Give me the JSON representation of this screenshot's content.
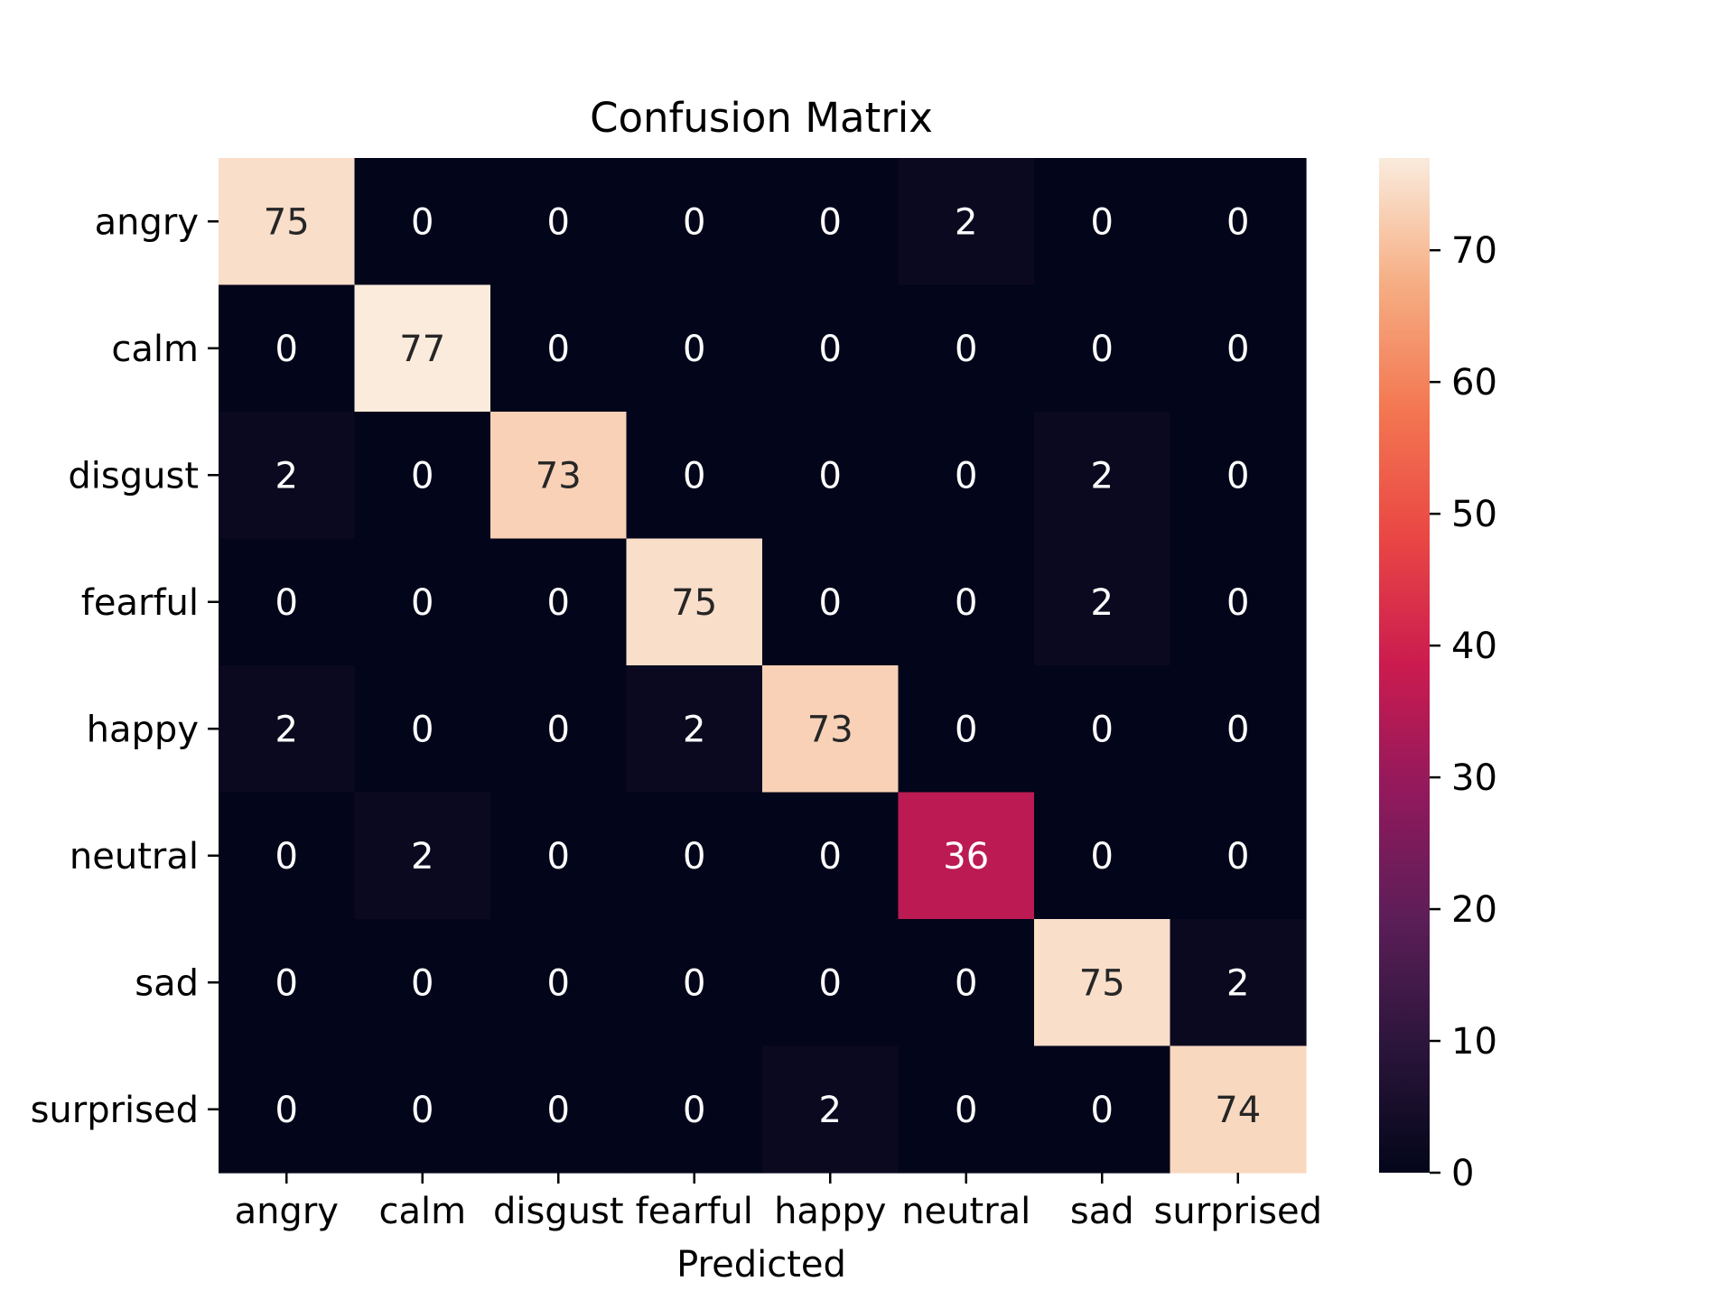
{
  "chart_data": {
    "type": "heatmap",
    "title": "Confusion Matrix",
    "xlabel": "Predicted",
    "ylabel": "",
    "x_categories": [
      "angry",
      "calm",
      "disgust",
      "fearful",
      "happy",
      "neutral",
      "sad",
      "surprised"
    ],
    "y_categories": [
      "angry",
      "calm",
      "disgust",
      "fearful",
      "happy",
      "neutral",
      "sad",
      "surprised"
    ],
    "values": [
      [
        75,
        0,
        0,
        0,
        0,
        2,
        0,
        0
      ],
      [
        0,
        77,
        0,
        0,
        0,
        0,
        0,
        0
      ],
      [
        2,
        0,
        73,
        0,
        0,
        0,
        2,
        0
      ],
      [
        0,
        0,
        0,
        75,
        0,
        0,
        2,
        0
      ],
      [
        2,
        0,
        0,
        2,
        73,
        0,
        0,
        0
      ],
      [
        0,
        2,
        0,
        0,
        0,
        36,
        0,
        0
      ],
      [
        0,
        0,
        0,
        0,
        0,
        0,
        75,
        2
      ],
      [
        0,
        0,
        0,
        0,
        2,
        0,
        0,
        74
      ]
    ],
    "colorbar": {
      "min": 0,
      "max": 77,
      "ticks": [
        0,
        10,
        20,
        30,
        40,
        50,
        60,
        70
      ],
      "colormap": "rocket"
    },
    "text_colors": {
      "light": "#ffffff",
      "dark": "#262626"
    }
  }
}
